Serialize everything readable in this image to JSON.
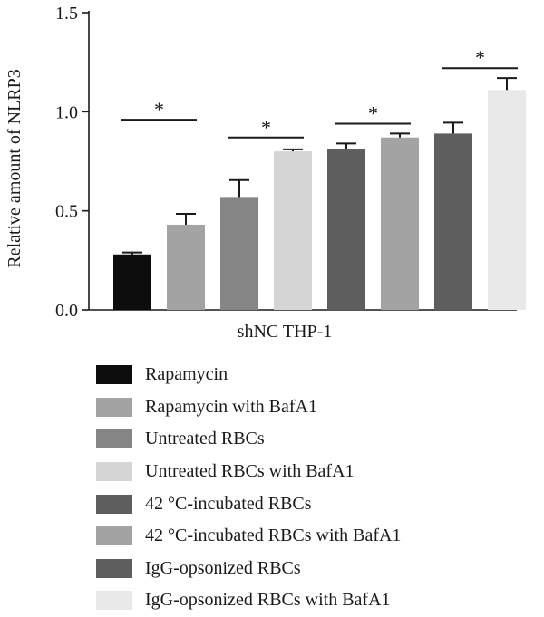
{
  "chart_data": {
    "type": "bar",
    "title": "",
    "xlabel": "shNC THP-1",
    "ylabel": "Relative amount of NLRP3",
    "ylim": [
      0,
      1.5
    ],
    "yticks": [
      "0.0",
      "0.5",
      "1.0",
      "1.5"
    ],
    "grid": false,
    "legend_position": "bottom",
    "series": [
      {
        "name": "Rapamycin",
        "value": 0.28,
        "error": 0.01,
        "color": "#0d0d0d"
      },
      {
        "name": "Rapamycin with BafA1",
        "value": 0.43,
        "error": 0.055,
        "color": "#a3a3a3"
      },
      {
        "name": "Untreated RBCs",
        "value": 0.57,
        "error": 0.085,
        "color": "#858585"
      },
      {
        "name": "Untreated RBCs with BafA1",
        "value": 0.8,
        "error": 0.01,
        "color": "#d5d5d5"
      },
      {
        "name": "42 °C-incubated RBCs",
        "value": 0.81,
        "error": 0.03,
        "color": "#5e5e5e"
      },
      {
        "name": "42 °C-incubated RBCs with BafA1",
        "value": 0.87,
        "error": 0.02,
        "color": "#a3a3a3"
      },
      {
        "name": "IgG-opsonized RBCs",
        "value": 0.89,
        "error": 0.055,
        "color": "#5e5e5e"
      },
      {
        "name": "IgG-opsonized RBCs with BafA1",
        "value": 1.11,
        "error": 0.06,
        "color": "#e9e9e9"
      }
    ],
    "significance": [
      {
        "pair": [
          0,
          1
        ],
        "level": 0.96,
        "label": "*"
      },
      {
        "pair": [
          2,
          3
        ],
        "level": 0.87,
        "label": "*"
      },
      {
        "pair": [
          4,
          5
        ],
        "level": 0.94,
        "label": "*"
      },
      {
        "pair": [
          6,
          7
        ],
        "level": 1.22,
        "label": "*"
      }
    ]
  }
}
